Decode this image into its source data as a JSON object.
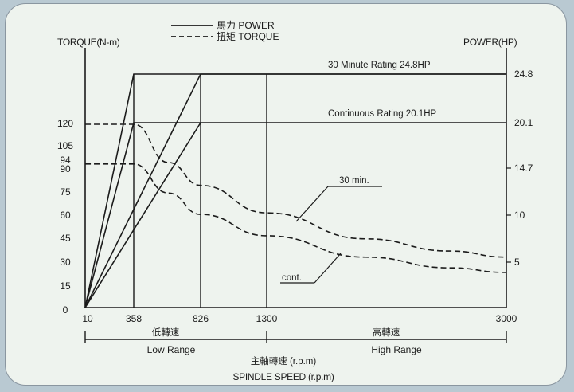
{
  "chart_data": {
    "type": "line",
    "title": "",
    "legend": [
      {
        "label": "馬力 POWER",
        "style": "solid"
      },
      {
        "label": "扭矩 TORQUE",
        "style": "dashed"
      }
    ],
    "ylabel_left": "TORQUE(N-m)",
    "ylabel_right": "POWER(HP)",
    "xlabel": "SPINDLE SPEED (r.p.m)",
    "xlabel_secondary": "主軸轉速 (r.p.m)",
    "x_ticks": [
      "10",
      "358",
      "826",
      "1300",
      "3000"
    ],
    "y_left_ticks": [
      "0",
      "15",
      "30",
      "45",
      "60",
      "75",
      "90",
      "94",
      "105",
      "120"
    ],
    "y_right_ticks": [
      "5",
      "10",
      "14.7",
      "20.1",
      "24.8"
    ],
    "ranges": [
      {
        "sub": "低轉速",
        "label": "Low Range",
        "from": 10,
        "to": 1300
      },
      {
        "sub": "高轉速",
        "label": "High Range",
        "from": 1300,
        "to": 3000
      }
    ],
    "ratings": [
      {
        "label": "30 Minute Rating 24.8HP",
        "hp": 24.8
      },
      {
        "label": "Continuous Rating 20.1HP",
        "hp": 20.1
      }
    ],
    "curve_labels": [
      "30 min.",
      "cont."
    ],
    "series": [
      {
        "name": "馬力 POWER",
        "style": "solid",
        "x": [
          10,
          358,
          3000
        ],
        "y": [
          0,
          24.8,
          24.8
        ]
      },
      {
        "name": "馬力 POWER",
        "style": "solid",
        "x": [
          10,
          826,
          3000
        ],
        "y": [
          0,
          24.8,
          24.8
        ]
      },
      {
        "name": "馬力 POWER",
        "style": "solid",
        "x": [
          10,
          358,
          3000
        ],
        "y": [
          0,
          20.1,
          20.1
        ]
      },
      {
        "name": "馬力 POWER",
        "style": "solid",
        "x": [
          10,
          826
        ],
        "y": [
          0,
          20.1
        ]
      },
      {
        "name": "扭矩 TORQUE",
        "style": "dashed",
        "x": [
          10,
          358,
          600,
          826,
          1300,
          2000,
          2600,
          3000
        ],
        "y": [
          120,
          120,
          95,
          80,
          62,
          45,
          37,
          33
        ]
      },
      {
        "name": "扭矩 TORQUE",
        "style": "dashed",
        "x": [
          10,
          358,
          600,
          826,
          1300,
          2000,
          2600,
          3000
        ],
        "y": [
          94,
          94,
          75,
          61,
          47,
          33,
          26,
          23
        ]
      }
    ]
  }
}
